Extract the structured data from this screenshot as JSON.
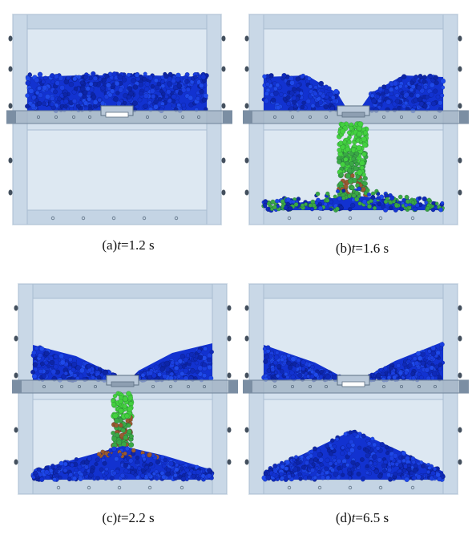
{
  "colors": {
    "box_fill": "#d4e1ee",
    "box_inner": "#dde8f2",
    "frame": "#a9bdd1",
    "frame_dark": "#7e95ad",
    "settled": "#1232d0",
    "falling_top": "#43d13f",
    "falling_mid": "#3aa845",
    "falling_low": "#9a5b30"
  },
  "panels": [
    {
      "label": "(a)",
      "var": "t",
      "eq": "=1.2 s",
      "stage": "start"
    },
    {
      "label": "(b)",
      "var": "t",
      "eq": "=1.6 s",
      "stage": "early"
    },
    {
      "label": "(c)",
      "var": "t",
      "eq": "=2.2 s",
      "stage": "mid"
    },
    {
      "label": "(d)",
      "var": "t",
      "eq": "=6.5 s",
      "stage": "end"
    }
  ]
}
